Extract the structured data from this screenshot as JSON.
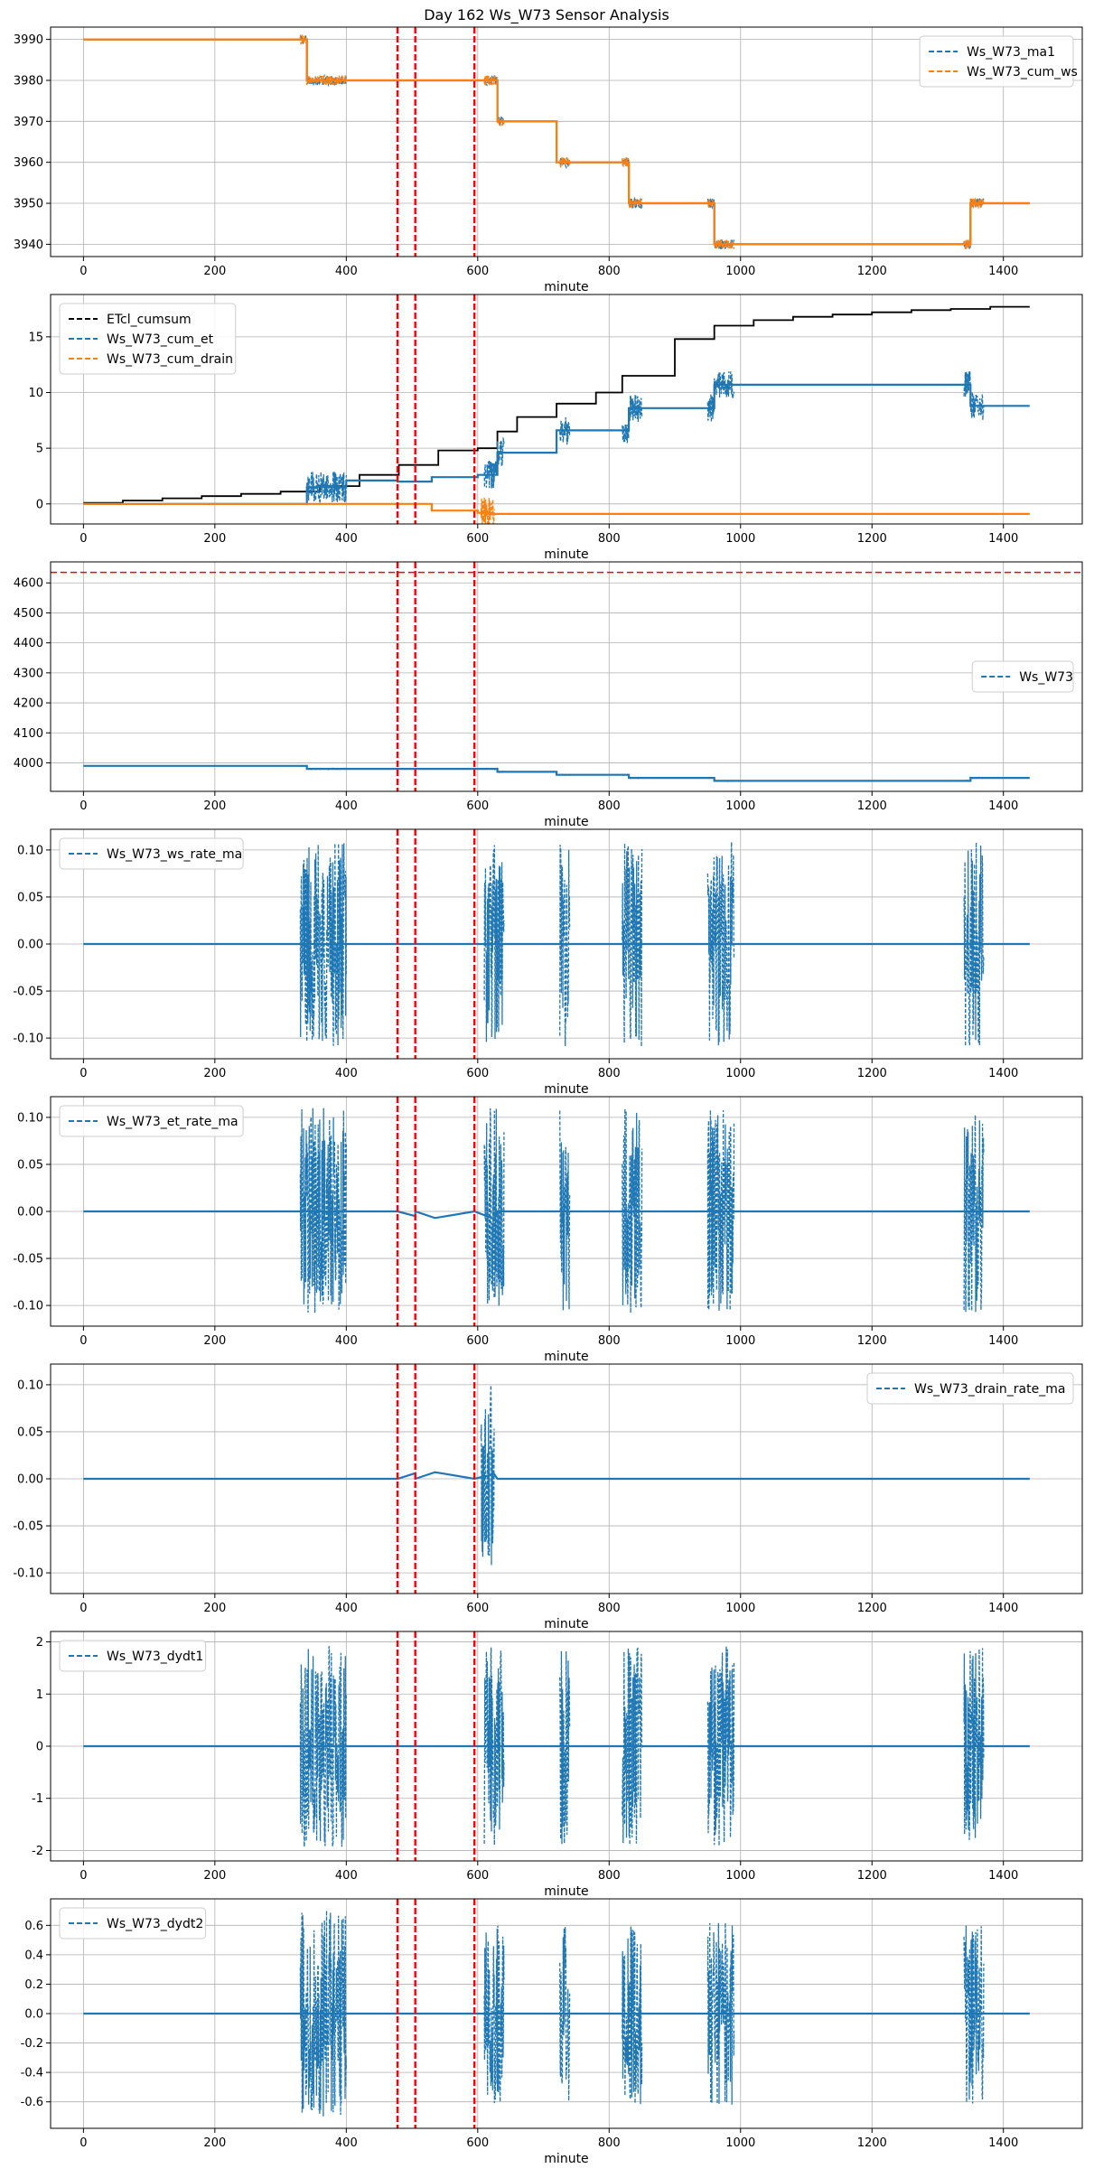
{
  "figure_title": "Day 162 Ws_W73 Sensor Analysis",
  "colors": {
    "blue": "#1f77b4",
    "orange": "#ff7f0e",
    "black": "#000000",
    "red": "#ff0000",
    "grid": "#b0b0b0"
  },
  "event_lines_minutes": [
    478,
    505,
    595
  ],
  "chart_data": [
    {
      "type": "line",
      "xlabel": "minute",
      "xlim": [
        -50,
        1520
      ],
      "ylim": [
        3937,
        3993
      ],
      "x_ticks": [
        0,
        200,
        400,
        600,
        800,
        1000,
        1200,
        1400
      ],
      "y_ticks": [
        3940,
        3950,
        3960,
        3970,
        3980,
        3990
      ],
      "y_tick_labels": [
        "3940",
        "3950",
        "3960",
        "3970",
        "3980",
        "3990"
      ],
      "legend": {
        "position": "top-right"
      },
      "series": [
        {
          "name": "Ws_W73_ma1",
          "color": "#1f77b4",
          "style": "dashed",
          "kind": "step",
          "levels": [
            [
              0,
              3990
            ],
            [
              340,
              3980
            ],
            [
              600,
              3980
            ],
            [
              630,
              3970
            ],
            [
              720,
              3960
            ],
            [
              830,
              3950
            ],
            [
              960,
              3940
            ],
            [
              1350,
              3950
            ],
            [
              1440,
              3950
            ]
          ],
          "bursts": [
            [
              330,
              400,
              -1.2
            ],
            [
              610,
              640,
              -1.2
            ],
            [
              725,
              740,
              -1.2
            ],
            [
              820,
              850,
              -1.2
            ],
            [
              950,
              990,
              -1.2
            ],
            [
              1340,
              1370,
              -1.2
            ]
          ]
        },
        {
          "name": "Ws_W73_cum_ws",
          "color": "#ff7f0e",
          "style": "dashed",
          "kind": "step",
          "levels": [
            [
              0,
              3990
            ],
            [
              340,
              3980
            ],
            [
              600,
              3980
            ],
            [
              630,
              3970
            ],
            [
              720,
              3960
            ],
            [
              830,
              3950
            ],
            [
              960,
              3940
            ],
            [
              1350,
              3950
            ],
            [
              1440,
              3950
            ]
          ],
          "bursts": [
            [
              330,
              400,
              -1.2
            ],
            [
              610,
              640,
              -1.2
            ],
            [
              725,
              740,
              -1.2
            ],
            [
              820,
              850,
              -1.2
            ],
            [
              950,
              990,
              -1.2
            ],
            [
              1340,
              1370,
              -1.2
            ]
          ]
        }
      ]
    },
    {
      "type": "line",
      "xlabel": "minute",
      "xlim": [
        -50,
        1520
      ],
      "ylim": [
        -1.8,
        18.8
      ],
      "x_ticks": [
        0,
        200,
        400,
        600,
        800,
        1000,
        1200,
        1400
      ],
      "y_ticks": [
        0,
        5,
        10,
        15
      ],
      "y_tick_labels": [
        "0",
        "5",
        "10",
        "15"
      ],
      "legend": {
        "position": "top-left"
      },
      "series": [
        {
          "name": "ETcl_cumsum",
          "color": "#000000",
          "style": "dashed",
          "kind": "step",
          "levels": [
            [
              0,
              0.1
            ],
            [
              60,
              0.3
            ],
            [
              120,
              0.5
            ],
            [
              180,
              0.7
            ],
            [
              240,
              0.9
            ],
            [
              300,
              1.1
            ],
            [
              360,
              1.6
            ],
            [
              420,
              2.6
            ],
            [
              480,
              3.5
            ],
            [
              540,
              4.8
            ],
            [
              600,
              5.0
            ],
            [
              630,
              6.5
            ],
            [
              660,
              7.8
            ],
            [
              720,
              9.0
            ],
            [
              780,
              10.0
            ],
            [
              820,
              11.5
            ],
            [
              900,
              14.8
            ],
            [
              960,
              16.0
            ],
            [
              1020,
              16.5
            ],
            [
              1080,
              16.8
            ],
            [
              1140,
              17.0
            ],
            [
              1200,
              17.2
            ],
            [
              1260,
              17.4
            ],
            [
              1320,
              17.5
            ],
            [
              1380,
              17.7
            ],
            [
              1440,
              17.7
            ]
          ],
          "bursts": []
        },
        {
          "name": "Ws_W73_cum_et",
          "color": "#1f77b4",
          "style": "dashed",
          "kind": "step",
          "levels": [
            [
              0,
              0
            ],
            [
              340,
              1.5
            ],
            [
              400,
              2.1
            ],
            [
              478,
              2.0
            ],
            [
              530,
              2.4
            ],
            [
              600,
              2.6
            ],
            [
              630,
              4.6
            ],
            [
              720,
              6.6
            ],
            [
              830,
              8.6
            ],
            [
              960,
              10.7
            ],
            [
              1350,
              8.8
            ],
            [
              1440,
              8.8
            ]
          ],
          "bursts": [
            [
              340,
              400,
              1.4
            ],
            [
              610,
              640,
              1.3
            ],
            [
              725,
              740,
              1.3
            ],
            [
              820,
              850,
              1.3
            ],
            [
              950,
              990,
              1.3
            ],
            [
              1340,
              1370,
              1.3
            ]
          ]
        },
        {
          "name": "Ws_W73_cum_drain",
          "color": "#ff7f0e",
          "style": "dashed",
          "kind": "step",
          "levels": [
            [
              0,
              0
            ],
            [
              478,
              0
            ],
            [
              530,
              -0.6
            ],
            [
              600,
              -0.8
            ],
            [
              620,
              -0.9
            ],
            [
              1440,
              -0.9
            ]
          ],
          "bursts": [
            [
              605,
              625,
              1.5
            ]
          ]
        }
      ]
    },
    {
      "type": "line",
      "xlabel": "minute",
      "xlim": [
        -50,
        1520
      ],
      "ylim": [
        3905,
        4670
      ],
      "x_ticks": [
        0,
        200,
        400,
        600,
        800,
        1000,
        1200,
        1400
      ],
      "y_ticks": [
        4000,
        4100,
        4200,
        4300,
        4400,
        4500,
        4600
      ],
      "y_tick_labels": [
        "4000",
        "4100",
        "4200",
        "4300",
        "4400",
        "4500",
        "4600"
      ],
      "legend": {
        "position": "center-right"
      },
      "hline": 4635,
      "series": [
        {
          "name": "Ws_W73",
          "color": "#1f77b4",
          "style": "dashed",
          "kind": "step",
          "levels": [
            [
              0,
              3990
            ],
            [
              340,
              3980
            ],
            [
              600,
              3980
            ],
            [
              630,
              3970
            ],
            [
              720,
              3960
            ],
            [
              830,
              3950
            ],
            [
              960,
              3940
            ],
            [
              1350,
              3950
            ],
            [
              1440,
              3950
            ]
          ],
          "bursts": [
            [
              330,
              400,
              -1.2
            ],
            [
              610,
              640,
              -1.2
            ],
            [
              725,
              740,
              -1.2
            ],
            [
              820,
              850,
              -1.2
            ],
            [
              950,
              990,
              -1.2
            ],
            [
              1340,
              1370,
              -1.2
            ]
          ]
        }
      ]
    },
    {
      "type": "line",
      "xlabel": "minute",
      "xlim": [
        -50,
        1520
      ],
      "ylim": [
        -0.122,
        0.122
      ],
      "x_ticks": [
        0,
        200,
        400,
        600,
        800,
        1000,
        1200,
        1400
      ],
      "y_ticks": [
        -0.1,
        -0.05,
        0.0,
        0.05,
        0.1
      ],
      "y_tick_labels": [
        "-0.10",
        "-0.05",
        "0.00",
        "0.05",
        "0.10"
      ],
      "legend": {
        "position": "top-left"
      },
      "series": [
        {
          "name": "Ws_W73_ws_rate_ma",
          "color": "#1f77b4",
          "style": "dashed",
          "kind": "osc",
          "base": [
            [
              0,
              0
            ],
            [
              1440,
              0
            ]
          ],
          "bursts": [
            [
              330,
              400,
              0.11
            ],
            [
              610,
              640,
              0.11
            ],
            [
              725,
              740,
              0.11
            ],
            [
              820,
              850,
              0.11
            ],
            [
              950,
              990,
              0.11
            ],
            [
              1340,
              1370,
              0.11
            ]
          ]
        }
      ]
    },
    {
      "type": "line",
      "xlabel": "minute",
      "xlim": [
        -50,
        1520
      ],
      "ylim": [
        -0.122,
        0.122
      ],
      "x_ticks": [
        0,
        200,
        400,
        600,
        800,
        1000,
        1200,
        1400
      ],
      "y_ticks": [
        -0.1,
        -0.05,
        0.0,
        0.05,
        0.1
      ],
      "y_tick_labels": [
        "-0.10",
        "-0.05",
        "0.00",
        "0.05",
        "0.10"
      ],
      "legend": {
        "position": "top-left"
      },
      "series": [
        {
          "name": "Ws_W73_et_rate_ma",
          "color": "#1f77b4",
          "style": "dashed",
          "kind": "osc",
          "base": [
            [
              0,
              0
            ],
            [
              478,
              0
            ],
            [
              505,
              -0.005
            ],
            [
              505,
              0
            ],
            [
              535,
              -0.007
            ],
            [
              595,
              0
            ],
            [
              625,
              -0.008
            ],
            [
              630,
              0
            ],
            [
              1440,
              0
            ]
          ],
          "bursts": [
            [
              330,
              400,
              0.11
            ],
            [
              610,
              640,
              0.11
            ],
            [
              725,
              740,
              0.11
            ],
            [
              820,
              850,
              0.11
            ],
            [
              950,
              990,
              0.11
            ],
            [
              1340,
              1370,
              0.11
            ]
          ]
        }
      ]
    },
    {
      "type": "line",
      "xlabel": "minute",
      "xlim": [
        -50,
        1520
      ],
      "ylim": [
        -0.122,
        0.122
      ],
      "x_ticks": [
        0,
        200,
        400,
        600,
        800,
        1000,
        1200,
        1400
      ],
      "y_ticks": [
        -0.1,
        -0.05,
        0.0,
        0.05,
        0.1
      ],
      "y_tick_labels": [
        "-0.10",
        "-0.05",
        "0.00",
        "0.05",
        "0.10"
      ],
      "legend": {
        "position": "top-right"
      },
      "series": [
        {
          "name": "Ws_W73_drain_rate_ma",
          "color": "#1f77b4",
          "style": "dashed",
          "kind": "osc",
          "base": [
            [
              0,
              0
            ],
            [
              478,
              0
            ],
            [
              505,
              0.006
            ],
            [
              505,
              0
            ],
            [
              535,
              0.007
            ],
            [
              595,
              0
            ],
            [
              625,
              0.005
            ],
            [
              630,
              0
            ],
            [
              1440,
              0
            ]
          ],
          "bursts": [
            [
              605,
              625,
              0.11
            ]
          ]
        }
      ]
    },
    {
      "type": "line",
      "xlabel": "minute",
      "xlim": [
        -50,
        1520
      ],
      "ylim": [
        -2.2,
        2.2
      ],
      "x_ticks": [
        0,
        200,
        400,
        600,
        800,
        1000,
        1200,
        1400
      ],
      "y_ticks": [
        -2,
        -1,
        0,
        1,
        2
      ],
      "y_tick_labels": [
        "-2",
        "-1",
        "0",
        "1",
        "2"
      ],
      "legend": {
        "position": "top-left"
      },
      "series": [
        {
          "name": "Ws_W73_dydt1",
          "color": "#1f77b4",
          "style": "dashed",
          "kind": "osc",
          "base": [
            [
              0,
              0
            ],
            [
              1440,
              0
            ]
          ],
          "bursts": [
            [
              330,
              400,
              1.95
            ],
            [
              610,
              640,
              1.9
            ],
            [
              725,
              740,
              1.9
            ],
            [
              820,
              850,
              1.9
            ],
            [
              950,
              990,
              1.95
            ],
            [
              1340,
              1370,
              1.9
            ]
          ]
        }
      ]
    },
    {
      "type": "line",
      "xlabel": "minute",
      "xlim": [
        -50,
        1520
      ],
      "ylim": [
        -0.78,
        0.78
      ],
      "x_ticks": [
        0,
        200,
        400,
        600,
        800,
        1000,
        1200,
        1400
      ],
      "y_ticks": [
        -0.6,
        -0.4,
        -0.2,
        0.0,
        0.2,
        0.4,
        0.6
      ],
      "y_tick_labels": [
        "-0.6",
        "-0.4",
        "-0.2",
        "0.0",
        "0.2",
        "0.4",
        "0.6"
      ],
      "legend": {
        "position": "top-left"
      },
      "series": [
        {
          "name": "Ws_W73_dydt2",
          "color": "#1f77b4",
          "style": "dashed",
          "kind": "osc",
          "base": [
            [
              0,
              0
            ],
            [
              1440,
              0
            ]
          ],
          "bursts": [
            [
              330,
              400,
              0.7
            ],
            [
              610,
              640,
              0.62
            ],
            [
              725,
              740,
              0.62
            ],
            [
              820,
              850,
              0.62
            ],
            [
              950,
              990,
              0.62
            ],
            [
              1340,
              1370,
              0.62
            ]
          ]
        }
      ]
    }
  ]
}
